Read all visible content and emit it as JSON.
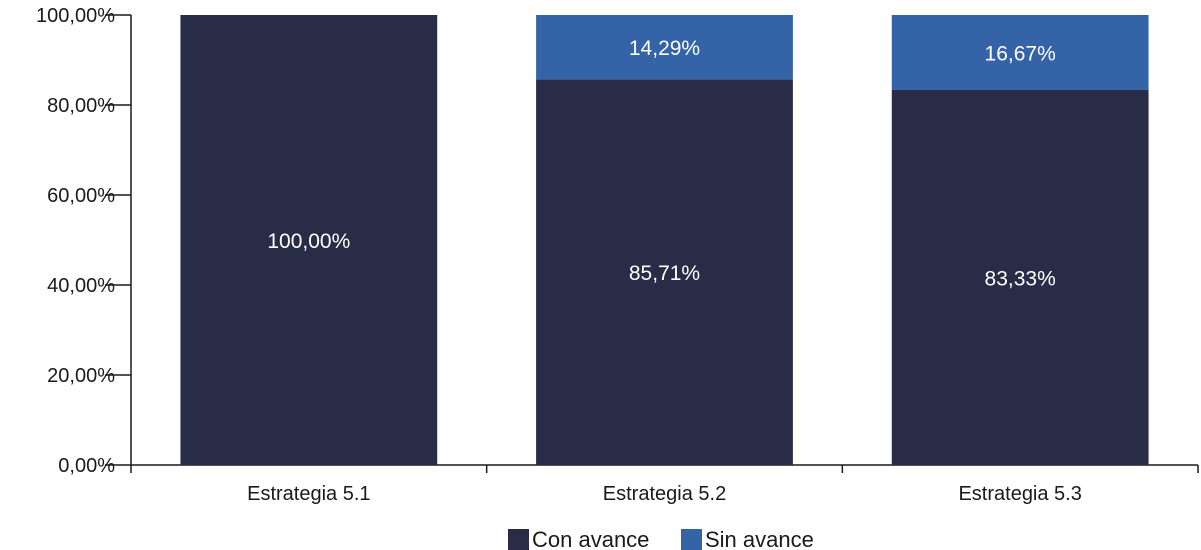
{
  "chart_data": {
    "type": "bar",
    "stacked": true,
    "categories": [
      "Estrategia 5.1",
      "Estrategia 5.2",
      "Estrategia 5.3"
    ],
    "series": [
      {
        "name": "Con avance",
        "values": [
          100.0,
          85.71,
          83.33
        ],
        "labels": [
          "100,00%",
          "85,71%",
          "83,33%"
        ],
        "color": "#282c46"
      },
      {
        "name": "Sin avance",
        "values": [
          0,
          14.29,
          16.67
        ],
        "labels": [
          "",
          "14,29%",
          "16,67%"
        ],
        "color": "#3563a8"
      }
    ],
    "ylim": [
      0,
      100
    ],
    "yticks": [
      0,
      20,
      40,
      60,
      80,
      100
    ],
    "ytick_labels": [
      "0,00%",
      "20,00%",
      "40,00%",
      "60,00%",
      "80,00%",
      "100,00%"
    ],
    "grid": false,
    "legend_position": "bottom-center",
    "title": "",
    "xlabel": "",
    "ylabel": ""
  }
}
